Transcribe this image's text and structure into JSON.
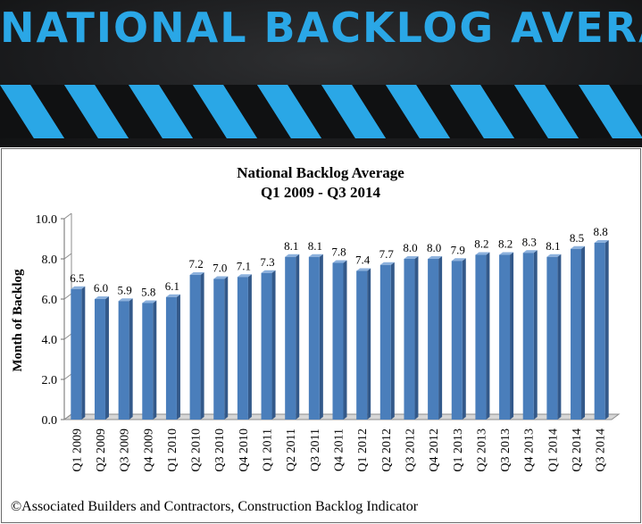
{
  "banner": {
    "title": "NATIONAL BACKLOG AVERAGE"
  },
  "credit": "©Associated Builders and Contractors, Construction Backlog Indicator",
  "colors": {
    "bar": "#4a7ebb",
    "bar_dark": "#33598a",
    "accent": "#2aa7e6",
    "stripe_dark": "#101112"
  },
  "chart_data": {
    "type": "bar",
    "title": "National Backlog Average",
    "subtitle": "Q1 2009 - Q3 2014",
    "xlabel": "",
    "ylabel": "Month of Backlog",
    "ylim": [
      0,
      10
    ],
    "yticks": [
      "0.0",
      "2.0",
      "4.0",
      "6.0",
      "8.0",
      "10.0"
    ],
    "grid": false,
    "legend": "none",
    "categories": [
      "Q1 2009",
      "Q2 2009",
      "Q3 2009",
      "Q4 2009",
      "Q1 2010",
      "Q2 2010",
      "Q3 2010",
      "Q4 2010",
      "Q1 2011",
      "Q2 2011",
      "Q3 2011",
      "Q4 2011",
      "Q1 2012",
      "Q2 2012",
      "Q3 2012",
      "Q4 2012",
      "Q1 2013",
      "Q2 2013",
      "Q3 2013",
      "Q4 2013",
      "Q1 2014",
      "Q2 2014",
      "Q3 2014"
    ],
    "values": [
      6.5,
      6.0,
      5.9,
      5.8,
      6.1,
      7.2,
      7.0,
      7.1,
      7.3,
      8.1,
      8.1,
      7.8,
      7.4,
      7.7,
      8.0,
      8.0,
      7.9,
      8.2,
      8.2,
      8.3,
      8.1,
      8.5,
      8.8
    ],
    "value_labels": [
      "6.5",
      "6.0",
      "5.9",
      "5.8",
      "6.1",
      "7.2",
      "7.0",
      "7.1",
      "7.3",
      "8.1",
      "8.1",
      "7.8",
      "7.4",
      "7.7",
      "8.0",
      "8.0",
      "7.9",
      "8.2",
      "8.2",
      "8.3",
      "8.1",
      "8.5",
      "8.8"
    ]
  }
}
